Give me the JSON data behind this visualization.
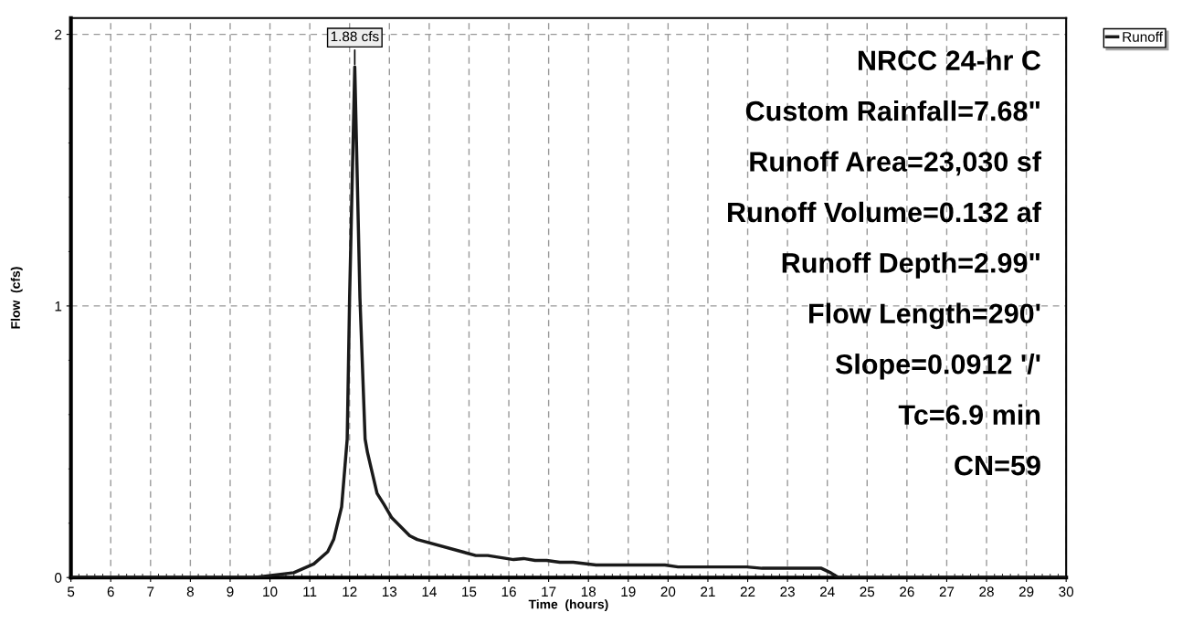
{
  "chart_data": {
    "type": "line",
    "xlabel": "Time  (hours)",
    "ylabel": "Flow  (cfs)",
    "xlim": [
      5,
      30
    ],
    "xticks": [
      5,
      6,
      7,
      8,
      9,
      10,
      11,
      12,
      13,
      14,
      15,
      16,
      17,
      18,
      19,
      20,
      21,
      22,
      23,
      24,
      25,
      26,
      27,
      28,
      29,
      30
    ],
    "ylim": [
      0,
      2.06
    ],
    "yticks": [
      0,
      1,
      2
    ],
    "grid": true,
    "legend": "top right",
    "series": [
      {
        "name": "Runoff",
        "color": "#1a1a1a",
        "x": [
          5,
          9.6,
          10.6,
          11.1,
          11.45,
          11.6,
          11.8,
          11.94,
          12.0,
          12.13,
          12.26,
          12.39,
          12.45,
          12.69,
          12.86,
          13.06,
          13.51,
          13.7,
          15.17,
          15.47,
          16.12,
          16.37,
          16.66,
          16.95,
          17.28,
          17.62,
          18.19,
          19.92,
          20.25,
          21.98,
          22.36,
          23.85,
          24.09,
          24.28,
          30
        ],
        "values": [
          0,
          0,
          0.018,
          0.05,
          0.095,
          0.14,
          0.26,
          0.51,
          1.03,
          1.88,
          1.03,
          0.51,
          0.46,
          0.31,
          0.27,
          0.22,
          0.154,
          0.14,
          0.081,
          0.081,
          0.066,
          0.07,
          0.063,
          0.063,
          0.056,
          0.056,
          0.046,
          0.046,
          0.039,
          0.039,
          0.034,
          0.034,
          0.017,
          0,
          0
        ]
      }
    ],
    "annotations": [
      {
        "text": "1.88 cfs",
        "x": 12.13,
        "y": 1.88
      },
      "NRCC 24-hr C",
      "Custom Rainfall=7.68\"",
      "Runoff Area=23,030 sf",
      "Runoff Volume=0.132 af",
      "Runoff Depth=2.99\"",
      "Flow Length=290'",
      "Slope=0.0912 '/'",
      "Tc=6.9 min",
      "CN=59"
    ]
  }
}
